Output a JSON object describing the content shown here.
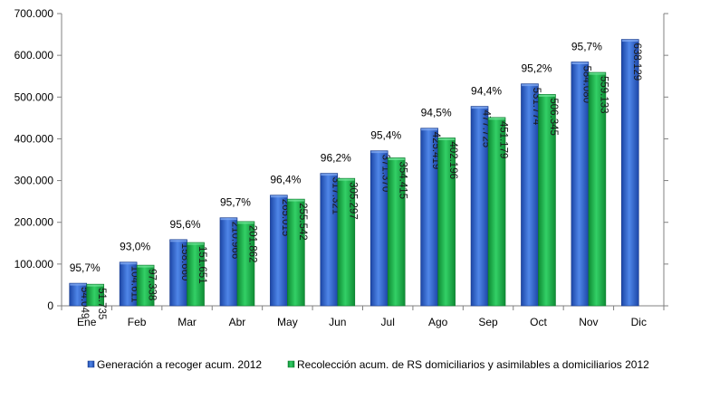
{
  "chart_data": {
    "type": "bar",
    "categories": [
      "Ene",
      "Feb",
      "Mar",
      "Abr",
      "May",
      "Jun",
      "Jul",
      "Ago",
      "Sep",
      "Oct",
      "Nov",
      "Dic"
    ],
    "series": [
      {
        "name": "Generación a recoger acum. 2012",
        "values": [
          54049,
          104611,
          158660,
          210966,
          265015,
          317321,
          371370,
          425419,
          477725,
          531774,
          584080,
          638129
        ],
        "labels": [
          "54.049",
          "104.611",
          "158.660",
          "210.966",
          "265.015",
          "317.321",
          "371.370",
          "425.419",
          "477.725",
          "531.774",
          "584.080",
          "638.129"
        ],
        "color": "#2e63c8"
      },
      {
        "name": "Recolección acum. de RS domiciliarios y asimilables a domiciliarios 2012",
        "values": [
          51735,
          97338,
          151651,
          201862,
          255542,
          305297,
          354415,
          402196,
          451179,
          506345,
          559133,
          null
        ],
        "labels": [
          "51.735",
          "97.338",
          "151.651",
          "201.862",
          "255.542",
          "305.297",
          "354.415",
          "402.196",
          "451.179",
          "506.345",
          "559.133",
          null
        ],
        "color": "#1fb24a"
      }
    ],
    "percent_labels": [
      "95,7%",
      "93,0%",
      "95,6%",
      "95,7%",
      "96,4%",
      "96,2%",
      "95,4%",
      "94,5%",
      "94,4%",
      "95,2%",
      "95,7%",
      null
    ],
    "ylim": [
      0,
      700000
    ],
    "yticks": [
      0,
      100000,
      200000,
      300000,
      400000,
      500000,
      600000,
      700000
    ],
    "ytick_labels": [
      "0",
      "100.000",
      "200.000",
      "300.000",
      "400.000",
      "500.000",
      "600.000",
      "700.000"
    ],
    "title": "",
    "xlabel": "",
    "ylabel": "",
    "legend_position": "bottom",
    "grid": false
  }
}
